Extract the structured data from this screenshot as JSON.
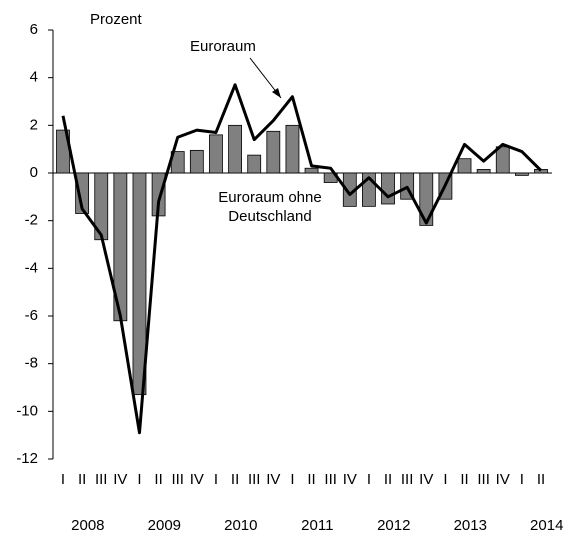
{
  "chart_data": {
    "type": "bar-line",
    "y_label": "Prozent",
    "categories": [
      "I",
      "II",
      "III",
      "IV",
      "I",
      "II",
      "III",
      "IV",
      "I",
      "II",
      "III",
      "IV",
      "I",
      "II",
      "III",
      "IV",
      "I",
      "II",
      "III",
      "IV",
      "I",
      "II",
      "III",
      "IV",
      "I",
      "II"
    ],
    "years": [
      "2008",
      "2009",
      "2010",
      "2011",
      "2012",
      "2013",
      "2014"
    ],
    "series": [
      {
        "name": "Euroraum ohne Deutschland",
        "type": "bar",
        "color": "#808080",
        "values": [
          1.8,
          -1.7,
          -2.8,
          -6.2,
          -9.3,
          -1.8,
          0.9,
          0.95,
          1.6,
          2.0,
          0.75,
          1.75,
          2.0,
          0.2,
          -0.4,
          -1.4,
          -1.4,
          -1.3,
          -1.1,
          -2.2,
          -1.1,
          0.6,
          0.15,
          1.1,
          -0.1,
          0.15
        ]
      },
      {
        "name": "Euroraum",
        "type": "line",
        "color": "#000000",
        "values": [
          2.4,
          -1.5,
          -2.6,
          -6.0,
          -10.9,
          -1.2,
          1.5,
          1.8,
          1.7,
          3.7,
          1.4,
          2.2,
          3.2,
          0.3,
          0.2,
          -0.9,
          -0.2,
          -1.0,
          -0.6,
          -2.1,
          -0.5,
          1.2,
          0.5,
          1.2,
          0.9,
          0.1
        ]
      }
    ],
    "ylim": [
      -12,
      6
    ],
    "yticks": [
      -12,
      -10,
      -8,
      -6,
      -4,
      -2,
      0,
      2,
      4,
      6
    ]
  }
}
